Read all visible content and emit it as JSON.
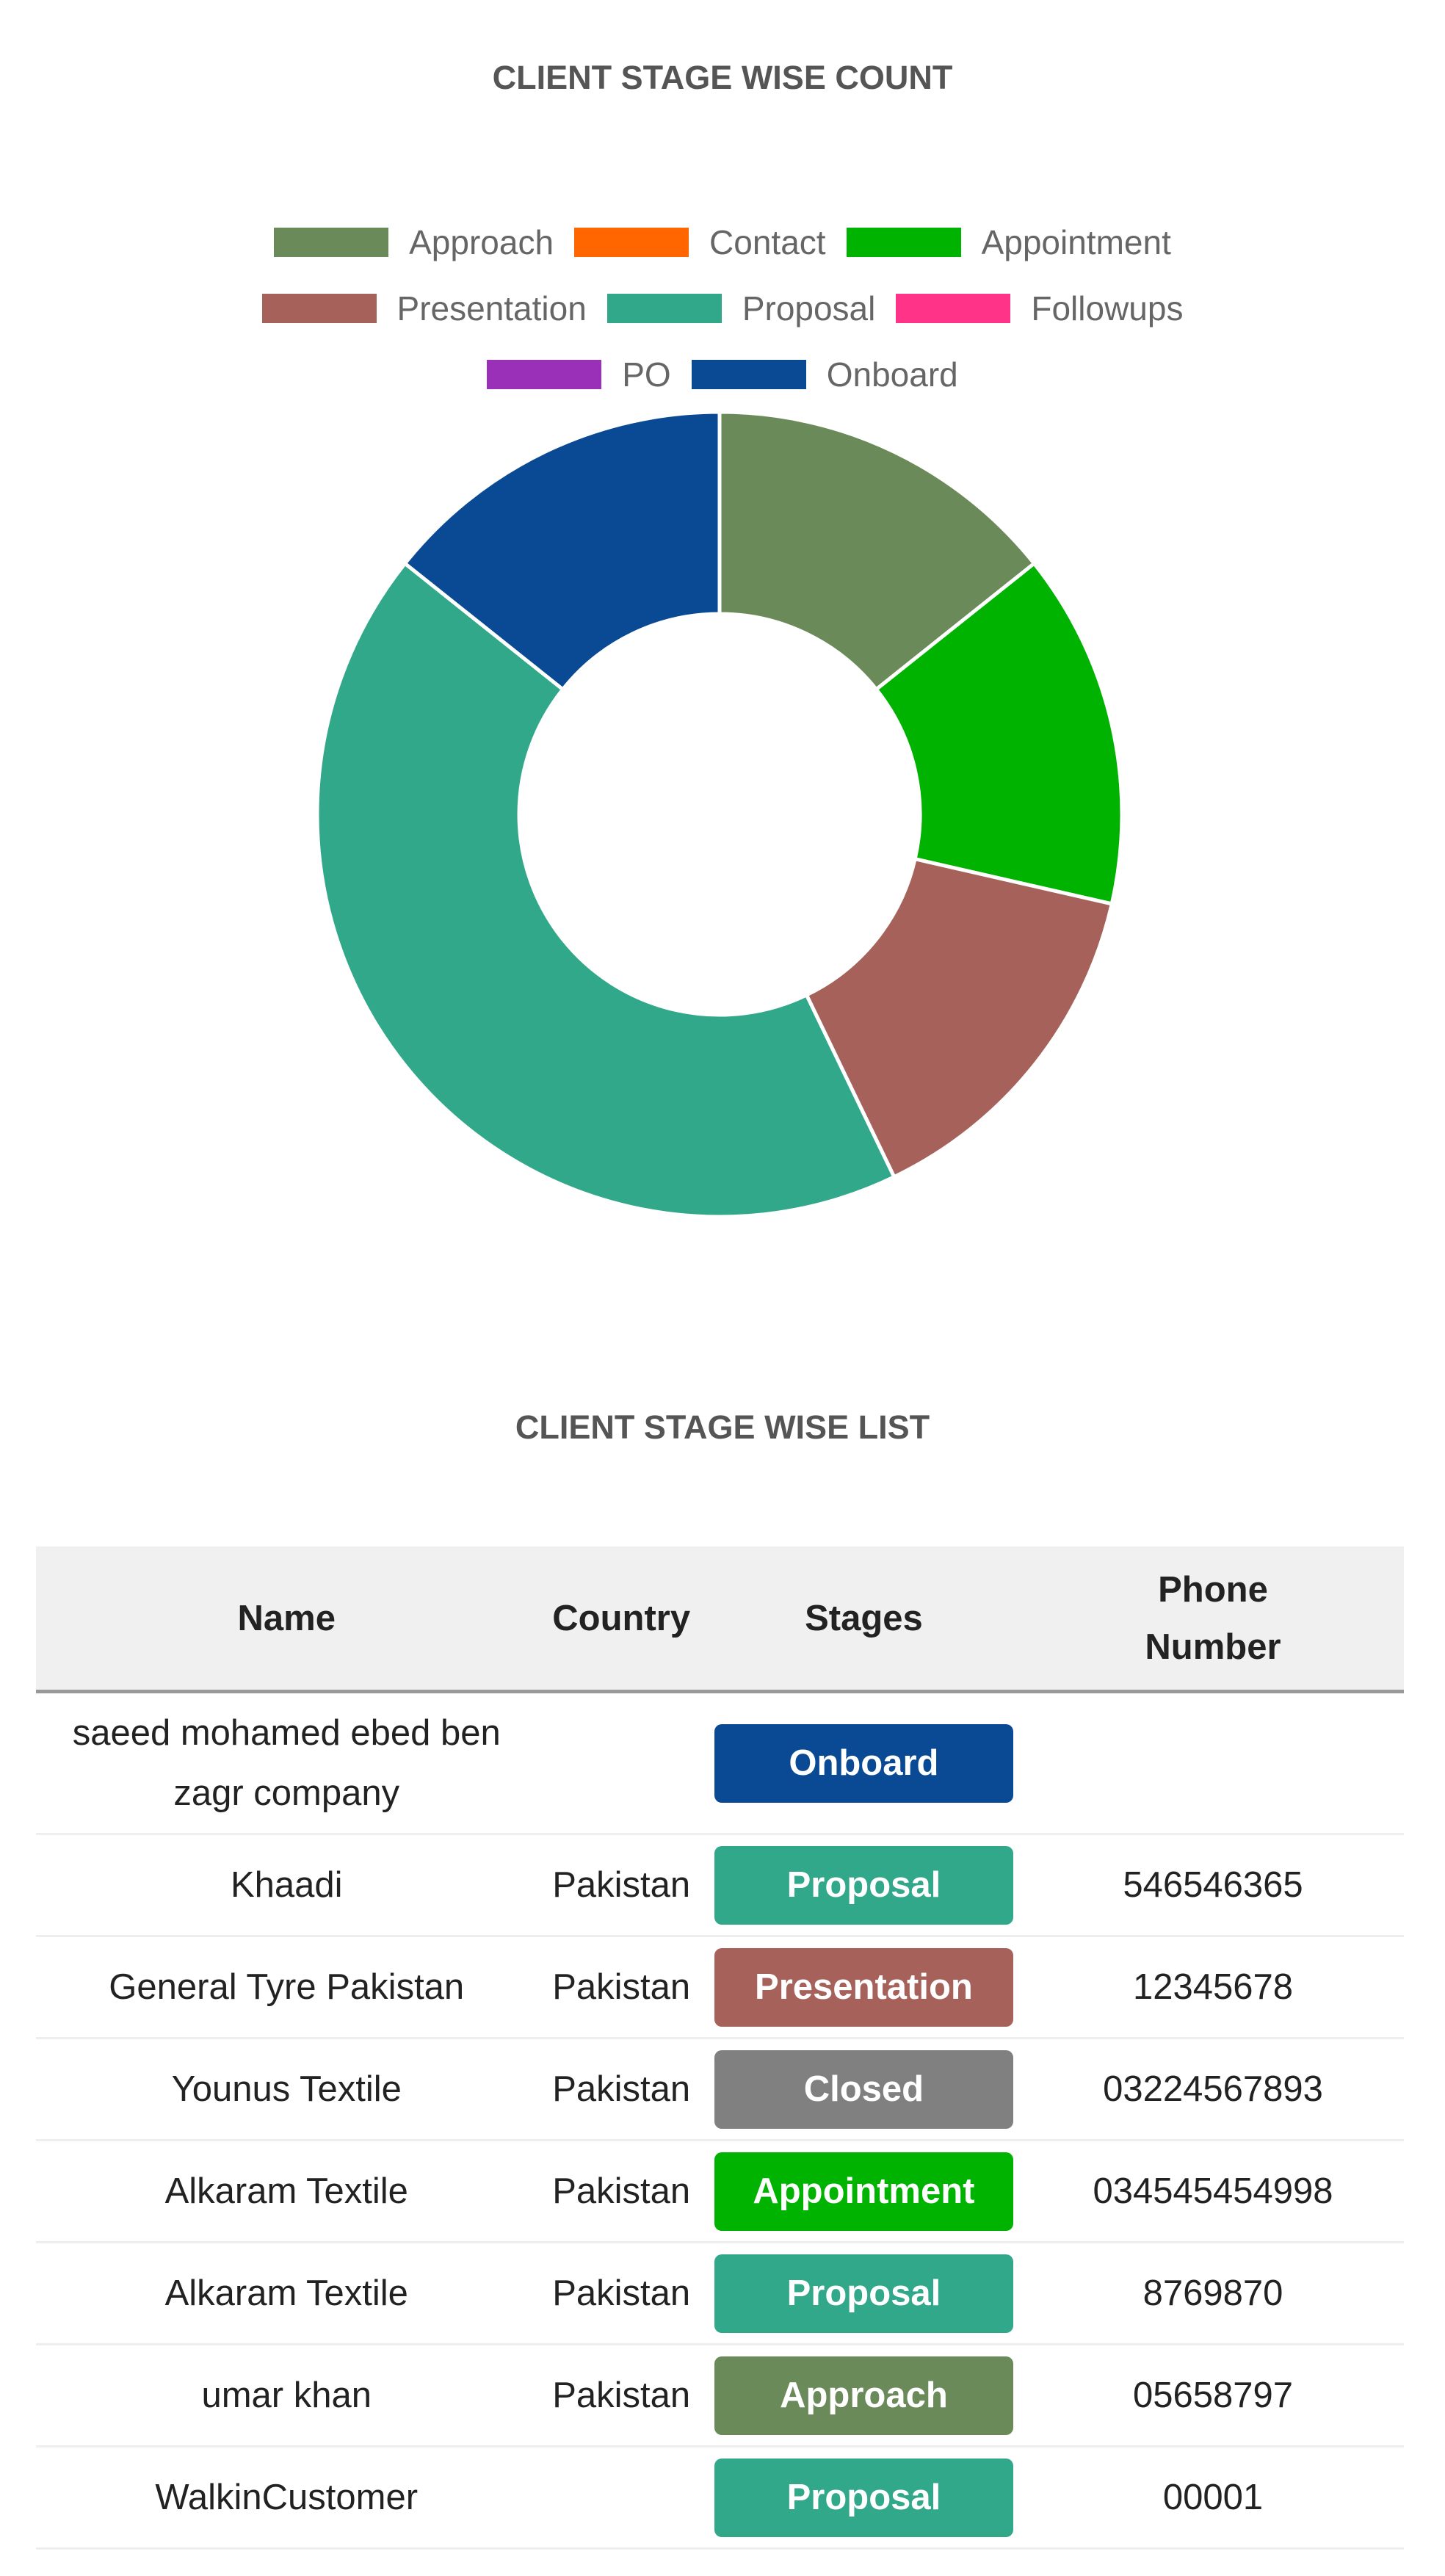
{
  "chart_data": {
    "type": "doughnut",
    "title": "CLIENT STAGE WISE COUNT",
    "categories": [
      "Approach",
      "Contact",
      "Appointment",
      "Presentation",
      "Proposal",
      "Followups",
      "PO",
      "Onboard"
    ],
    "values": [
      1,
      0,
      1,
      1,
      3,
      0,
      0,
      1
    ],
    "colors": [
      "#6b8a5a",
      "#ff6600",
      "#00b300",
      "#a5615a",
      "#31a88a",
      "#ff3388",
      "#9b30b8",
      "#0a4a94"
    ]
  },
  "table": {
    "title": "CLIENT STAGE WISE LIST",
    "headers": [
      "Name",
      "Country",
      "Stages",
      "Phone Number"
    ],
    "rows": [
      {
        "name": "saeed mohamed ebed ben zagr company",
        "country": null,
        "stage": "Onboard",
        "stage_color": "#0a4a94",
        "phone": null
      },
      {
        "name": "Khaadi",
        "country": "Pakistan",
        "stage": "Proposal",
        "stage_color": "#31a88a",
        "phone": "546546365"
      },
      {
        "name": "General Tyre Pakistan",
        "country": "Pakistan",
        "stage": "Presentation",
        "stage_color": "#a5615a",
        "phone": "12345678"
      },
      {
        "name": "Younus Textile",
        "country": "Pakistan",
        "stage": "Closed",
        "stage_color": "#808080",
        "phone": "03224567893"
      },
      {
        "name": "Alkaram Textile",
        "country": "Pakistan",
        "stage": "Appointment",
        "stage_color": "#00b300",
        "phone": "034545454998"
      },
      {
        "name": "Alkaram Textile",
        "country": "Pakistan",
        "stage": "Proposal",
        "stage_color": "#31a88a",
        "phone": "8769870"
      },
      {
        "name": "umar khan",
        "country": "Pakistan",
        "stage": "Approach",
        "stage_color": "#6b8a5a",
        "phone": "05658797"
      },
      {
        "name": "WalkinCustomer",
        "country": null,
        "stage": "Proposal",
        "stage_color": "#31a88a",
        "phone": "00001"
      }
    ]
  }
}
